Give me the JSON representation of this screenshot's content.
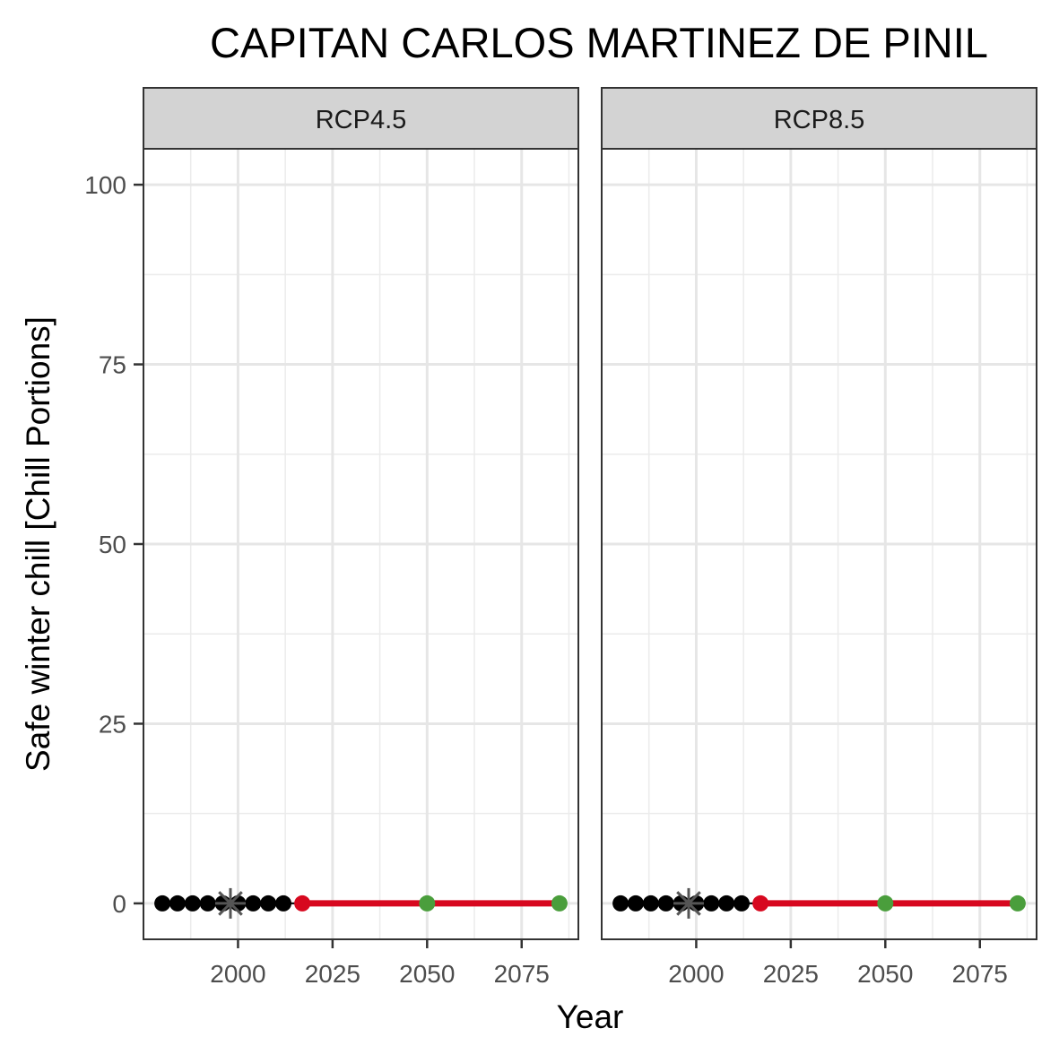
{
  "chart_data": {
    "type": "scatter",
    "title": "CAPITAN CARLOS MARTINEZ DE PINIL",
    "xlabel": "Year",
    "ylabel": "Safe winter chill [Chill Portions]",
    "xlim": [
      1975,
      2090
    ],
    "ylim": [
      -5,
      105
    ],
    "x_ticks": [
      2000,
      2025,
      2050,
      2075
    ],
    "y_ticks": [
      0,
      25,
      50,
      75,
      100
    ],
    "grid": true,
    "colors": {
      "historic": "#000000",
      "past_scenario": "#555555",
      "projection_line": "#d7081f",
      "future_2050_2085": "#4a9e3c",
      "strip_fill": "#d3d3d3"
    },
    "panels": [
      {
        "label": "RCP4.5",
        "historic_points": {
          "x": [
            1980,
            1984,
            1988,
            1992,
            1996,
            2000,
            2004,
            2008,
            2012
          ],
          "y": [
            0,
            0,
            0,
            0,
            0,
            0,
            0,
            0,
            0
          ]
        },
        "past_scenario_marker": {
          "x": 1998,
          "y": 0
        },
        "projection_line": {
          "x": [
            2017,
            2085
          ],
          "y": [
            0,
            0
          ]
        },
        "current_point": {
          "x": 2017,
          "y": 0
        },
        "future_points": {
          "x": [
            2050,
            2085
          ],
          "y": [
            0,
            0
          ]
        }
      },
      {
        "label": "RCP8.5",
        "historic_points": {
          "x": [
            1980,
            1984,
            1988,
            1992,
            1996,
            2000,
            2004,
            2008,
            2012
          ],
          "y": [
            0,
            0,
            0,
            0,
            0,
            0,
            0,
            0,
            0
          ]
        },
        "past_scenario_marker": {
          "x": 1998,
          "y": 0
        },
        "projection_line": {
          "x": [
            2017,
            2085
          ],
          "y": [
            0,
            0
          ]
        },
        "current_point": {
          "x": 2017,
          "y": 0
        },
        "future_points": {
          "x": [
            2050,
            2085
          ],
          "y": [
            0,
            0
          ]
        }
      }
    ]
  }
}
